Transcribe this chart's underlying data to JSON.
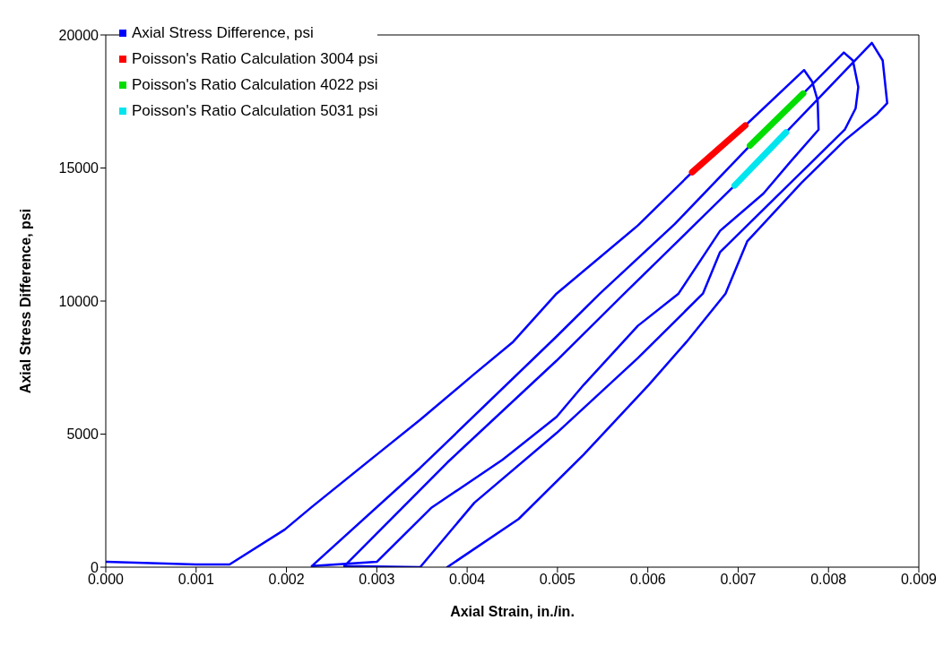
{
  "chart_data": {
    "type": "line",
    "xlabel": "Axial Strain, in./in.",
    "ylabel": "Axial Stress Difference, psi",
    "xlim": [
      0,
      0.009
    ],
    "xticks": [
      {
        "value": 0,
        "label": "0.000"
      },
      {
        "value": 0.001,
        "label": "0.001"
      },
      {
        "value": 0.002,
        "label": "0.002"
      },
      {
        "value": 0.003,
        "label": "0.003"
      },
      {
        "value": 0.004,
        "label": "0.004"
      },
      {
        "value": 0.005,
        "label": "0.005"
      },
      {
        "value": 0.006,
        "label": "0.006"
      },
      {
        "value": 0.007,
        "label": "0.007"
      },
      {
        "value": 0.008,
        "label": "0.008"
      },
      {
        "value": 0.009,
        "label": "0.009"
      }
    ],
    "ylim": [
      0,
      20000
    ],
    "yticks": [
      0,
      5000,
      10000,
      15000,
      20000
    ],
    "grid": false,
    "legend": "top left",
    "marker": "none",
    "line_style": "solid",
    "series": [
      {
        "name": "Axial Stress Difference, psi",
        "color": "#0000ff",
        "x": [
          0,
          0.0005,
          0.001,
          0.00137,
          0.00198,
          0.00228,
          0.003,
          0.00348,
          0.00408,
          0.00451,
          0.00499,
          0.00589,
          0.00649,
          0.00708,
          0.00773,
          0.00782,
          0.00788,
          0.00789,
          0.00758,
          0.00728,
          0.0068,
          0.00634,
          0.00589,
          0.00529,
          0.00499,
          0.00439,
          0.0036,
          0.003,
          0.00228,
          0.00348,
          0.00499,
          0.00547,
          0.0063,
          0.00713,
          0.00772,
          0.00817,
          0.00827,
          0.00833,
          0.0083,
          0.00818,
          0.00782,
          0.0074,
          0.0068,
          0.00661,
          0.00589,
          0.00499,
          0.00408,
          0.00348,
          0.00264,
          0.00378,
          0.00499,
          0.00574,
          0.00696,
          0.00753,
          0.00848,
          0.0086,
          0.00865,
          0.00854,
          0.00818,
          0.0077,
          0.0071,
          0.00686,
          0.00643,
          0.00601,
          0.00529,
          0.00457,
          0.00378
        ],
        "values": [
          200,
          150,
          100,
          100,
          1410,
          2260,
          4230,
          5540,
          7260,
          8470,
          10280,
          12840,
          14840,
          16600,
          18680,
          18240,
          17540,
          16440,
          15240,
          14040,
          12640,
          10280,
          9070,
          6850,
          5650,
          4030,
          2220,
          200,
          40,
          3730,
          8670,
          10280,
          12900,
          15840,
          17800,
          19340,
          19040,
          18040,
          17240,
          16440,
          15240,
          13840,
          11840,
          10280,
          7860,
          5040,
          2420,
          0,
          40,
          3930,
          7760,
          10280,
          14340,
          16340,
          19700,
          19040,
          17440,
          17040,
          16040,
          14440,
          12240,
          10280,
          8470,
          6850,
          4230,
          1810,
          0
        ]
      },
      {
        "name": "Poisson's Ratio Calculation 3004 psi",
        "color": "#ff0000",
        "x": [
          0.00649,
          0.00708
        ],
        "values": [
          14840,
          16600
        ]
      },
      {
        "name": "Poisson's Ratio Calculation 4022 psi",
        "color": "#00dd00",
        "x": [
          0.00713,
          0.00772
        ],
        "values": [
          15840,
          17800
        ]
      },
      {
        "name": "Poisson's Ratio Calculation 5031 psi",
        "color": "#00e5ee",
        "x": [
          0.00696,
          0.00753
        ],
        "values": [
          14340,
          16340
        ]
      }
    ]
  }
}
